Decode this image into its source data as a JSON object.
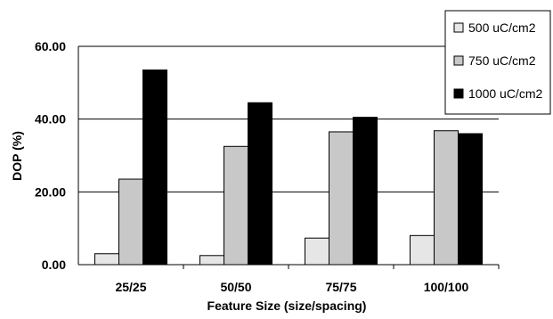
{
  "chart_data": {
    "type": "bar",
    "title": "",
    "xlabel": "Feature Size (size/spacing)",
    "ylabel": "DOP (%)",
    "categories": [
      "25/25",
      "50/50",
      "75/75",
      "100/100"
    ],
    "ylim": [
      0,
      60
    ],
    "yticks": [
      "0.00",
      "20.00",
      "40.00",
      "60.00"
    ],
    "grid": true,
    "legend_position": "top-right",
    "series": [
      {
        "name": "500 uC/cm2",
        "color": "#e6e6e6",
        "values": [
          3.0,
          2.5,
          7.3,
          8.0
        ]
      },
      {
        "name": "750 uC/cm2",
        "color": "#c8c8c8",
        "values": [
          23.5,
          32.5,
          36.5,
          36.8
        ]
      },
      {
        "name": "1000 uC/cm2",
        "color": "#000000",
        "values": [
          53.5,
          44.5,
          40.5,
          36.0
        ]
      }
    ]
  }
}
